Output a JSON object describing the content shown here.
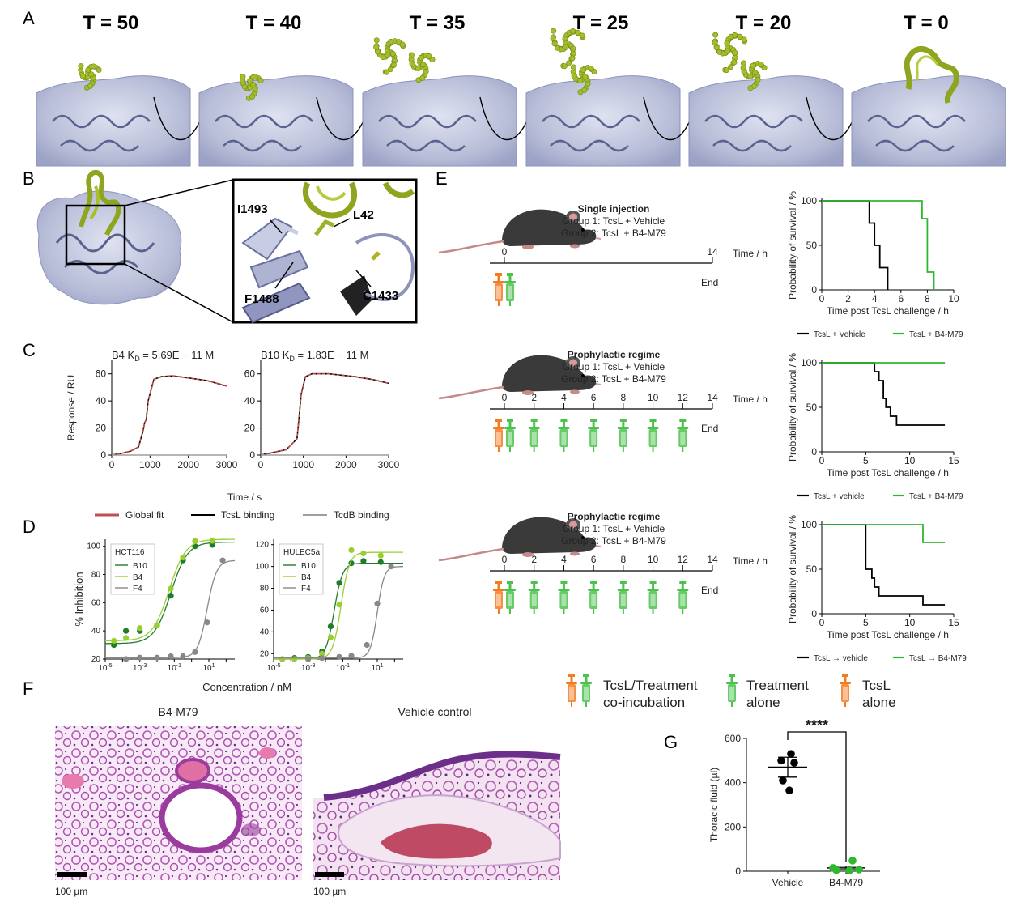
{
  "panels": {
    "a": "A",
    "b": "B",
    "c": "C",
    "d": "D",
    "e": "E",
    "f": "F",
    "g": "G"
  },
  "panel_a": {
    "timesteps": [
      "T = 50",
      "T = 40",
      "T = 35",
      "T = 25",
      "T = 20",
      "T = 0"
    ]
  },
  "panel_b": {
    "residues": [
      "I1493",
      "L42",
      "F1488",
      "C1433"
    ]
  },
  "chart_data": [
    {
      "id": "C1",
      "type": "line",
      "title": "B4 K_D = 5.69E − 11 M",
      "ylabel": "Response / RU",
      "xlabel": "Time / s",
      "xlim": [
        0,
        3000
      ],
      "ylim": [
        0,
        70
      ],
      "xticks": [
        "0",
        "1000",
        "2000",
        "3000"
      ],
      "yticks": [
        "0",
        "20",
        "40",
        "60"
      ],
      "series": [
        {
          "name": "TcsL binding",
          "color": "#000000",
          "points": [
            [
              0,
              0
            ],
            [
              300,
              1.5
            ],
            [
              500,
              3
            ],
            [
              700,
              6
            ],
            [
              820,
              18
            ],
            [
              860,
              24
            ],
            [
              900,
              26
            ],
            [
              950,
              40
            ],
            [
              1100,
              56
            ],
            [
              1300,
              58
            ],
            [
              1600,
              58.5
            ],
            [
              2000,
              57
            ],
            [
              2500,
              55
            ],
            [
              3000,
              51
            ]
          ]
        },
        {
          "name": "Global fit",
          "color": "#c0504d",
          "points": [
            [
              0,
              0
            ],
            [
              300,
              1.5
            ],
            [
              500,
              3
            ],
            [
              700,
              6
            ],
            [
              820,
              18
            ],
            [
              860,
              24
            ],
            [
              900,
              26
            ],
            [
              950,
              40
            ],
            [
              1100,
              56
            ],
            [
              1300,
              58
            ],
            [
              1600,
              58.5
            ],
            [
              2000,
              57
            ],
            [
              2500,
              55
            ],
            [
              3000,
              51
            ]
          ]
        },
        {
          "name": "TcdB binding",
          "color": "#9e9e9e",
          "points": [
            [
              0,
              0
            ],
            [
              3000,
              0
            ]
          ]
        }
      ]
    },
    {
      "id": "C2",
      "type": "line",
      "title": "B10 K_D = 1.83E − 11 M",
      "xlim": [
        0,
        3000
      ],
      "ylim": [
        0,
        70
      ],
      "xticks": [
        "0",
        "1000",
        "2000",
        "3000"
      ],
      "yticks": [
        "0",
        "20",
        "40",
        "60"
      ],
      "series": [
        {
          "name": "TcsL binding",
          "color": "#000000",
          "points": [
            [
              0,
              0
            ],
            [
              300,
              2
            ],
            [
              600,
              4
            ],
            [
              850,
              12
            ],
            [
              900,
              28
            ],
            [
              950,
              45
            ],
            [
              1050,
              58
            ],
            [
              1200,
              60
            ],
            [
              1600,
              60
            ],
            [
              2200,
              58
            ],
            [
              2600,
              56
            ],
            [
              3000,
              53
            ]
          ]
        },
        {
          "name": "Global fit",
          "color": "#c0504d",
          "points": [
            [
              0,
              0
            ],
            [
              300,
              2
            ],
            [
              600,
              4
            ],
            [
              850,
              12
            ],
            [
              900,
              28
            ],
            [
              950,
              45
            ],
            [
              1050,
              58
            ],
            [
              1200,
              60
            ],
            [
              1600,
              60
            ],
            [
              2200,
              58
            ],
            [
              2600,
              56
            ],
            [
              3000,
              53
            ]
          ]
        },
        {
          "name": "TcdB binding",
          "color": "#9e9e9e",
          "points": [
            [
              0,
              0
            ],
            [
              3000,
              0
            ]
          ]
        }
      ]
    },
    {
      "id": "D1",
      "type": "scatter",
      "title": "HCT116",
      "ylabel": "% Inhibition",
      "xlabel": "Concentration / nM",
      "ylim": [
        20,
        105
      ],
      "xlog": true,
      "yticks": [
        "20",
        "40",
        "60",
        "80",
        "100"
      ],
      "series": [
        {
          "name": "B10",
          "color": "#1e7d2a",
          "ec50_log": -1.2,
          "min": 31,
          "max": 103,
          "hill": 0.9,
          "points": [
            [
              -4.5,
              30
            ],
            [
              -3.8,
              40
            ],
            [
              -3.0,
              40
            ],
            [
              -2.0,
              44
            ],
            [
              -1.2,
              65
            ],
            [
              -0.5,
              90
            ],
            [
              0.2,
              100
            ],
            [
              1.2,
              101
            ]
          ]
        },
        {
          "name": "B4",
          "color": "#9acd32",
          "ec50_log": -1.3,
          "min": 33,
          "max": 105,
          "hill": 0.9,
          "points": [
            [
              -4.5,
              33
            ],
            [
              -3.8,
              35
            ],
            [
              -3.0,
              42
            ],
            [
              -2.0,
              44
            ],
            [
              -1.2,
              70
            ],
            [
              -0.5,
              92
            ],
            [
              0.2,
              104
            ],
            [
              1.2,
              104
            ]
          ]
        },
        {
          "name": "F4",
          "color": "#888888",
          "ec50_log": 0.9,
          "min": 21,
          "max": 90,
          "hill": 1.6,
          "points": [
            [
              -3.8,
              20
            ],
            [
              -3.0,
              21
            ],
            [
              -2.0,
              21
            ],
            [
              -1.2,
              22
            ],
            [
              -0.5,
              22
            ],
            [
              0.2,
              25
            ],
            [
              0.9,
              46
            ],
            [
              1.8,
              90
            ]
          ]
        }
      ]
    },
    {
      "id": "D2",
      "type": "scatter",
      "title": "HULEC5a",
      "ylim": [
        15,
        125
      ],
      "xlog": true,
      "yticks": [
        "20",
        "40",
        "60",
        "80",
        "100",
        "120"
      ],
      "series": [
        {
          "name": "B10",
          "color": "#1e7d2a",
          "ec50_log": -1.5,
          "min": 15,
          "max": 103,
          "hill": 1.8,
          "points": [
            [
              -4.5,
              15
            ],
            [
              -3.8,
              16
            ],
            [
              -3.0,
              17
            ],
            [
              -2.2,
              22
            ],
            [
              -1.7,
              45
            ],
            [
              -1.2,
              85
            ],
            [
              -0.5,
              103
            ],
            [
              0.2,
              105
            ],
            [
              1.2,
              104
            ]
          ]
        },
        {
          "name": "B4",
          "color": "#9acd32",
          "ec50_log": -1.1,
          "min": 15,
          "max": 113,
          "hill": 1.8,
          "points": [
            [
              -4.5,
              15
            ],
            [
              -3.8,
              15
            ],
            [
              -3.0,
              16
            ],
            [
              -2.2,
              20
            ],
            [
              -1.7,
              35
            ],
            [
              -1.2,
              65
            ],
            [
              -0.5,
              115
            ],
            [
              0.2,
              112
            ],
            [
              1.2,
              110
            ]
          ]
        },
        {
          "name": "F4",
          "color": "#888888",
          "ec50_log": 1.0,
          "min": 16,
          "max": 100,
          "hill": 2.2,
          "points": [
            [
              -3.0,
              15
            ],
            [
              -2.2,
              16
            ],
            [
              -1.2,
              17
            ],
            [
              -0.5,
              18
            ],
            [
              0.4,
              28
            ],
            [
              1.0,
              66
            ],
            [
              1.8,
              100
            ]
          ]
        }
      ]
    },
    {
      "id": "E1",
      "type": "line",
      "step": true,
      "ylabel": "Probability of survival / %",
      "xlabel": "Time post TcsL challenge / h",
      "xlim": [
        0,
        10
      ],
      "ylim": [
        0,
        100
      ],
      "xticks": [
        "0",
        "2",
        "4",
        "6",
        "8",
        "10"
      ],
      "yticks": [
        "0",
        "50",
        "100"
      ],
      "legend": [
        "TcsL + Vehicle",
        "TcsL +  B4-M79"
      ],
      "series": [
        {
          "name": "TcsL + Vehicle",
          "color": "#000000",
          "points": [
            [
              0,
              100
            ],
            [
              3.6,
              100
            ],
            [
              3.6,
              75
            ],
            [
              4.0,
              75
            ],
            [
              4.0,
              50
            ],
            [
              4.4,
              50
            ],
            [
              4.4,
              25
            ],
            [
              5.0,
              25
            ],
            [
              5.0,
              0
            ]
          ]
        },
        {
          "name": "TcsL +  B4-M79",
          "color": "#2eb82e",
          "points": [
            [
              0,
              100
            ],
            [
              7.6,
              100
            ],
            [
              7.6,
              80
            ],
            [
              8.0,
              80
            ],
            [
              8.0,
              20
            ],
            [
              8.5,
              20
            ],
            [
              8.5,
              0
            ]
          ]
        }
      ]
    },
    {
      "id": "E2",
      "type": "line",
      "step": true,
      "ylabel": "Probability of survival / %",
      "xlabel": "Time post TcsL challenge / h",
      "xlim": [
        0,
        15
      ],
      "ylim": [
        0,
        100
      ],
      "xticks": [
        "0",
        "5",
        "10",
        "15"
      ],
      "yticks": [
        "0",
        "50",
        "100"
      ],
      "legend": [
        "TcsL + vehicle",
        "TcsL + B4-M79"
      ],
      "series": [
        {
          "name": "TcsL + vehicle",
          "color": "#000000",
          "points": [
            [
              0,
              100
            ],
            [
              6.0,
              100
            ],
            [
              6.0,
              90
            ],
            [
              6.5,
              90
            ],
            [
              6.5,
              80
            ],
            [
              7.0,
              80
            ],
            [
              7.0,
              60
            ],
            [
              7.3,
              60
            ],
            [
              7.3,
              50
            ],
            [
              7.8,
              50
            ],
            [
              7.8,
              40
            ],
            [
              8.5,
              40
            ],
            [
              8.5,
              30
            ],
            [
              14,
              30
            ]
          ]
        },
        {
          "name": "TcsL + B4-M79",
          "color": "#2eb82e",
          "points": [
            [
              0,
              100
            ],
            [
              14,
              100
            ]
          ]
        }
      ]
    },
    {
      "id": "E3",
      "type": "line",
      "step": true,
      "ylabel": "Probability of survival / %",
      "xlabel": "Time post TcsL challenge / h",
      "xlim": [
        0,
        15
      ],
      "ylim": [
        0,
        100
      ],
      "xticks": [
        "0",
        "5",
        "10",
        "15"
      ],
      "yticks": [
        "0",
        "50",
        "100"
      ],
      "legend": [
        "TcsL → vehicle",
        "TcsL → B4-M79"
      ],
      "series": [
        {
          "name": "TcsL → vehicle",
          "color": "#000000",
          "points": [
            [
              0,
              100
            ],
            [
              5.0,
              100
            ],
            [
              5.0,
              50
            ],
            [
              5.7,
              50
            ],
            [
              5.7,
              40
            ],
            [
              6.0,
              40
            ],
            [
              6.0,
              30
            ],
            [
              6.5,
              30
            ],
            [
              6.5,
              20
            ],
            [
              11.5,
              20
            ],
            [
              11.5,
              10
            ],
            [
              14,
              10
            ]
          ]
        },
        {
          "name": "TcsL → B4-M79",
          "color": "#2eb82e",
          "points": [
            [
              0,
              100
            ],
            [
              11.5,
              100
            ],
            [
              11.5,
              80
            ],
            [
              14,
              80
            ]
          ]
        }
      ]
    },
    {
      "id": "G",
      "type": "scatter",
      "ylabel": "Thoracic fluid (µl)",
      "categories": [
        "Vehicle",
        "B4-M79"
      ],
      "ylim": [
        0,
        600
      ],
      "yticks": [
        "0",
        "200",
        "400",
        "600"
      ],
      "significance": "****",
      "series": [
        {
          "name": "Vehicle",
          "color": "#000000",
          "mean": 470,
          "sem": 45,
          "points": [
            530,
            500,
            490,
            410,
            365
          ]
        },
        {
          "name": "B4-M79",
          "color": "#2eb82e",
          "mean": 15,
          "sem": 8,
          "points": [
            48,
            15,
            8,
            5,
            3
          ]
        }
      ]
    }
  ],
  "panel_c": {
    "legend": [
      "Global fit",
      "TcsL binding",
      "TcdB binding"
    ]
  },
  "panel_e": {
    "schemes": [
      {
        "title": "Single injection",
        "group1": "Group 1: TcsL + Vehicle",
        "group2": "Group 2: TcsL + B4-M79",
        "ticks": [
          "0",
          "14"
        ],
        "time_label": "Time / h",
        "end_label": "End"
      },
      {
        "title": "Prophylactic regime",
        "group1": "Group 1: TcsL + Vehicle",
        "group2": "Group 2: TcsL + B4-M79",
        "ticks": [
          "0",
          "2",
          "4",
          "6",
          "8",
          "10",
          "12",
          "14"
        ],
        "time_label": "Time / h",
        "end_label": "End"
      },
      {
        "title": "Prophylactic regime",
        "group1": "Group 1: TcsL + Vehicle",
        "group2": "Group 2: TcsL + B4-M79",
        "ticks": [
          "0",
          "2",
          "4",
          "6",
          "8",
          "10",
          "12",
          "14"
        ],
        "time_label": "Time / h",
        "end_label": "End"
      }
    ],
    "key": {
      "coinc_1": "TcsL/Treatment",
      "coinc_2": "co-incubation",
      "treat_1": "Treatment",
      "treat_2": "alone",
      "tcsl_1": "TcsL",
      "tcsl_2": "alone"
    }
  },
  "panel_f": {
    "left_title": "B4-M79",
    "right_title": "Vehicle control",
    "scale_label": "100 µm"
  },
  "colors": {
    "green": "#2eb82e",
    "lime": "#9bb52a",
    "orange": "#f47b20",
    "protein": "#b7bcd8"
  }
}
